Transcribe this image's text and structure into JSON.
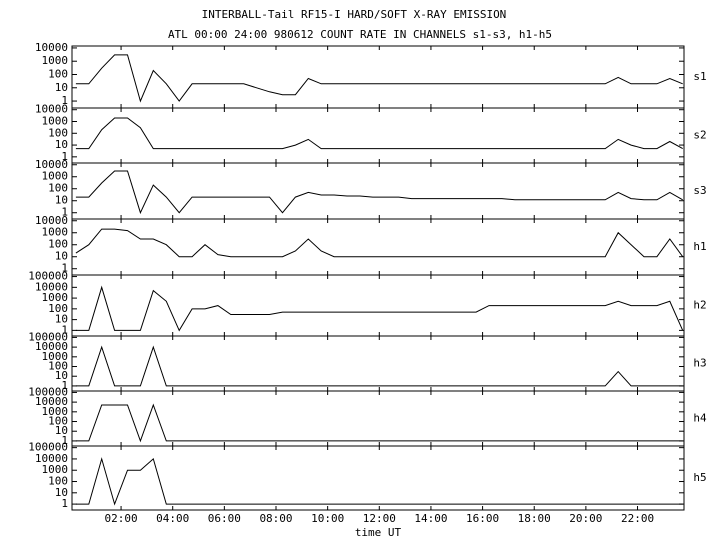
{
  "chart_data": {
    "type": "line",
    "title": "INTERBALL-Tail RF15-I HARD/SOFT X-RAY EMISSION",
    "subtitle": "ATL 00:00 24:00 980612  COUNT RATE IN CHANNELS s1-s3, h1-h5",
    "x_label": "time UT",
    "log_scale": true,
    "color": "#000000",
    "xlim": [
      0.1,
      23.8
    ],
    "xticks": [
      {
        "value": 2,
        "label": "02:00"
      },
      {
        "value": 4,
        "label": "04:00"
      },
      {
        "value": 6,
        "label": "06:00"
      },
      {
        "value": 8,
        "label": "08:00"
      },
      {
        "value": 10,
        "label": "10:00"
      },
      {
        "value": 12,
        "label": "12:00"
      },
      {
        "value": 14,
        "label": "14:00"
      },
      {
        "value": 16,
        "label": "16:00"
      },
      {
        "value": 18,
        "label": "18:00"
      },
      {
        "value": 20,
        "label": "20:00"
      },
      {
        "value": 22,
        "label": "22:00"
      }
    ],
    "x": [
      0.25,
      0.75,
      1.25,
      1.75,
      2.25,
      2.75,
      3.25,
      3.75,
      4.25,
      4.75,
      5.25,
      5.75,
      6.25,
      6.75,
      7.25,
      7.75,
      8.25,
      8.75,
      9.25,
      9.75,
      10.25,
      10.75,
      11.25,
      11.75,
      12.25,
      12.75,
      13.25,
      13.75,
      14.25,
      14.75,
      15.25,
      15.75,
      16.25,
      16.75,
      17.25,
      17.75,
      18.25,
      18.75,
      19.25,
      19.75,
      20.25,
      20.75,
      21.25,
      21.75,
      22.25,
      22.75,
      23.25,
      23.75
    ],
    "series": [
      {
        "name": "s1",
        "ylim": [
          0.3,
          14000
        ],
        "yticks": [
          1,
          10,
          100,
          1000,
          10000
        ],
        "values": [
          20,
          20,
          300,
          3000,
          3000,
          1,
          200,
          20,
          1,
          20,
          20,
          20,
          20,
          20,
          10,
          5,
          3,
          3,
          50,
          20,
          20,
          20,
          20,
          20,
          20,
          20,
          20,
          20,
          20,
          20,
          20,
          20,
          20,
          20,
          20,
          20,
          20,
          20,
          20,
          20,
          20,
          20,
          60,
          20,
          20,
          20,
          50,
          20
        ]
      },
      {
        "name": "s2",
        "ylim": [
          0.3,
          14000
        ],
        "yticks": [
          1,
          10,
          100,
          1000,
          10000
        ],
        "values": [
          5,
          5,
          200,
          2000,
          2000,
          300,
          5,
          5,
          5,
          5,
          5,
          5,
          5,
          5,
          5,
          5,
          5,
          10,
          30,
          5,
          5,
          5,
          5,
          5,
          5,
          5,
          5,
          5,
          5,
          5,
          5,
          5,
          5,
          5,
          5,
          5,
          5,
          5,
          5,
          5,
          5,
          5,
          30,
          10,
          5,
          5,
          20,
          5
        ]
      },
      {
        "name": "s3",
        "ylim": [
          0.3,
          14000
        ],
        "yticks": [
          1,
          10,
          100,
          1000,
          10000
        ],
        "values": [
          20,
          20,
          300,
          3000,
          3000,
          1,
          200,
          20,
          1,
          20,
          20,
          20,
          20,
          20,
          20,
          20,
          1,
          20,
          50,
          30,
          30,
          25,
          25,
          20,
          20,
          20,
          15,
          15,
          15,
          15,
          15,
          15,
          15,
          15,
          12,
          12,
          12,
          12,
          12,
          12,
          12,
          12,
          50,
          15,
          12,
          12,
          50,
          12
        ]
      },
      {
        "name": "h1",
        "ylim": [
          0.3,
          14000
        ],
        "yticks": [
          1,
          10,
          100,
          1000,
          10000
        ],
        "values": [
          20,
          100,
          2000,
          2000,
          1500,
          300,
          300,
          100,
          10,
          10,
          100,
          15,
          10,
          10,
          10,
          10,
          10,
          30,
          300,
          30,
          10,
          10,
          10,
          10,
          10,
          10,
          10,
          10,
          10,
          10,
          10,
          10,
          10,
          10,
          10,
          10,
          10,
          10,
          10,
          10,
          10,
          10,
          1000,
          100,
          10,
          10,
          300,
          10
        ]
      },
      {
        "name": "h2",
        "ylim": [
          0.3,
          140000
        ],
        "yticks": [
          1,
          10,
          100,
          1000,
          10000,
          100000
        ],
        "values": [
          1,
          1,
          10000,
          1,
          1,
          1,
          5000,
          500,
          1,
          100,
          100,
          200,
          30,
          30,
          30,
          30,
          50,
          50,
          50,
          50,
          50,
          50,
          50,
          50,
          50,
          50,
          50,
          50,
          50,
          50,
          50,
          50,
          200,
          200,
          200,
          200,
          200,
          200,
          200,
          200,
          200,
          200,
          500,
          200,
          200,
          200,
          500,
          1
        ]
      },
      {
        "name": "h3",
        "ylim": [
          0.3,
          140000
        ],
        "yticks": [
          1,
          10,
          100,
          1000,
          10000,
          100000
        ],
        "values": [
          1,
          1,
          10000,
          1,
          1,
          1,
          10000,
          1,
          1,
          1,
          1,
          1,
          1,
          1,
          1,
          1,
          1,
          1,
          1,
          1,
          1,
          1,
          1,
          1,
          1,
          1,
          1,
          1,
          1,
          1,
          1,
          1,
          1,
          1,
          1,
          1,
          1,
          1,
          1,
          1,
          1,
          1,
          30,
          1,
          1,
          1,
          1,
          1
        ]
      },
      {
        "name": "h4",
        "ylim": [
          0.3,
          140000
        ],
        "yticks": [
          1,
          10,
          100,
          1000,
          10000,
          100000
        ],
        "values": [
          1,
          1,
          5000,
          5000,
          5000,
          1,
          5000,
          1,
          1,
          1,
          1,
          1,
          1,
          1,
          1,
          1,
          1,
          1,
          1,
          1,
          1,
          1,
          1,
          1,
          1,
          1,
          1,
          1,
          1,
          1,
          1,
          1,
          1,
          1,
          1,
          1,
          1,
          1,
          1,
          1,
          1,
          1,
          1,
          1,
          1,
          1,
          1,
          1
        ]
      },
      {
        "name": "h5",
        "ylim": [
          0.3,
          140000
        ],
        "yticks": [
          1,
          10,
          100,
          1000,
          10000,
          100000
        ],
        "values": [
          1,
          1,
          10000,
          1,
          1000,
          1000,
          10000,
          1,
          1,
          1,
          1,
          1,
          1,
          1,
          1,
          1,
          1,
          1,
          1,
          1,
          1,
          1,
          1,
          1,
          1,
          1,
          1,
          1,
          1,
          1,
          1,
          1,
          1,
          1,
          1,
          1,
          1,
          1,
          1,
          1,
          1,
          1,
          1,
          1,
          1,
          1,
          1,
          1
        ]
      }
    ]
  }
}
